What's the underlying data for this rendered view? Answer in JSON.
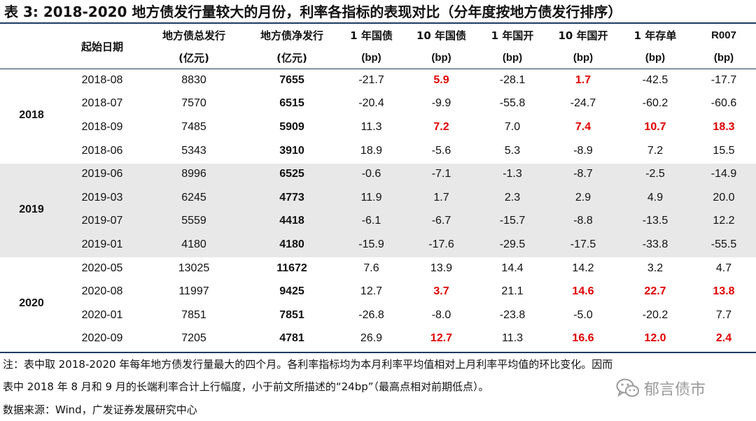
{
  "title": "表 3:  2018-2020 地方债发行量较大的月份，利率各指标的表现对比（分年度按地方债发行排序）",
  "header": {
    "row1": [
      "起始日期",
      "地方债总发行",
      "地方债净发行",
      "1 年国债",
      "10 年国债",
      "1 年国开",
      "10 年国开",
      "1 年存单",
      "R007"
    ],
    "row2": [
      "",
      "(亿元)",
      "(亿元)",
      "(bp)",
      "(bp)",
      "(bp)",
      "(bp)",
      "(bp)",
      "(bp)"
    ]
  },
  "groups": [
    {
      "year": "2018",
      "rows": [
        {
          "date": "2018-08",
          "total": "8830",
          "net": "7655",
          "g1y": "-21.7",
          "g10y": "5.9",
          "cdb1y": "-28.1",
          "cdb10y": "1.7",
          "ncd1y": "-42.5",
          "r007": "-17.7"
        },
        {
          "date": "2018-07",
          "total": "7570",
          "net": "6515",
          "g1y": "-20.4",
          "g10y": "-9.9",
          "cdb1y": "-55.8",
          "cdb10y": "-24.7",
          "ncd1y": "-60.2",
          "r007": "-60.6"
        },
        {
          "date": "2018-09",
          "total": "7485",
          "net": "5909",
          "g1y": "11.3",
          "g10y": "7.2",
          "cdb1y": "7.0",
          "cdb10y": "7.4",
          "ncd1y": "10.7",
          "r007": "18.3"
        },
        {
          "date": "2018-06",
          "total": "5343",
          "net": "3910",
          "g1y": "18.9",
          "g10y": "-5.6",
          "cdb1y": "5.3",
          "cdb10y": "-8.9",
          "ncd1y": "7.2",
          "r007": "15.5"
        }
      ]
    },
    {
      "year": "2019",
      "rows": [
        {
          "date": "2019-06",
          "total": "8996",
          "net": "6525",
          "g1y": "-0.6",
          "g10y": "-7.1",
          "cdb1y": "-1.3",
          "cdb10y": "-8.7",
          "ncd1y": "-2.5",
          "r007": "-14.9"
        },
        {
          "date": "2019-03",
          "total": "6245",
          "net": "4773",
          "g1y": "11.9",
          "g10y": "1.7",
          "cdb1y": "2.3",
          "cdb10y": "2.9",
          "ncd1y": "4.9",
          "r007": "20.0"
        },
        {
          "date": "2019-07",
          "total": "5559",
          "net": "4418",
          "g1y": "-6.1",
          "g10y": "-6.7",
          "cdb1y": "-15.7",
          "cdb10y": "-8.8",
          "ncd1y": "-13.5",
          "r007": "12.2"
        },
        {
          "date": "2019-01",
          "total": "4180",
          "net": "4180",
          "g1y": "-15.9",
          "g10y": "-17.6",
          "cdb1y": "-29.5",
          "cdb10y": "-17.5",
          "ncd1y": "-33.8",
          "r007": "-55.5"
        }
      ]
    },
    {
      "year": "2020",
      "rows": [
        {
          "date": "2020-05",
          "total": "13025",
          "net": "11672",
          "g1y": "7.6",
          "g10y": "13.9",
          "cdb1y": "14.4",
          "cdb10y": "14.2",
          "ncd1y": "3.2",
          "r007": "4.7"
        },
        {
          "date": "2020-08",
          "total": "11997",
          "net": "9425",
          "g1y": "12.7",
          "g10y": "3.7",
          "cdb1y": "21.1",
          "cdb10y": "14.6",
          "ncd1y": "22.7",
          "r007": "13.8"
        },
        {
          "date": "2020-01",
          "total": "7851",
          "net": "7851",
          "g1y": "-26.8",
          "g10y": "-8.0",
          "cdb1y": "-23.8",
          "cdb10y": "-5.0",
          "ncd1y": "-20.2",
          "r007": "7.7"
        },
        {
          "date": "2020-09",
          "total": "7205",
          "net": "4781",
          "g1y": "26.9",
          "g10y": "12.7",
          "cdb1y": "11.3",
          "cdb10y": "16.6",
          "ncd1y": "12.0",
          "r007": "2.4"
        }
      ]
    }
  ],
  "highlight_color": "#e00000",
  "highlighted_cells": {
    "g10y": [
      "2018-08",
      "2018-09",
      "2020-08",
      "2020-09"
    ],
    "cdb10y": [
      "2018-08",
      "2018-09",
      "2020-08",
      "2020-09"
    ],
    "ncd1y": [
      "2018-09",
      "2020-08",
      "2020-09"
    ],
    "r007": [
      "2018-09",
      "2020-08",
      "2020-09"
    ]
  },
  "notes": {
    "line1": "注：表中取 2018-2020 年每年地方债发行量最大的四个月。各利率指标均为本月利率平均值相对上月利率平均值的环比变化。因而",
    "line2": "表中 2018 年 8 月和 9 月的长端利率合计上行幅度，小于前文所描述的“24bp”（最高点相对前期低点）。",
    "source": "数据来源：Wind，广发证券发展研究中心"
  },
  "watermark": {
    "text": "郁言债市",
    "icon": "wechat-logo-icon"
  }
}
